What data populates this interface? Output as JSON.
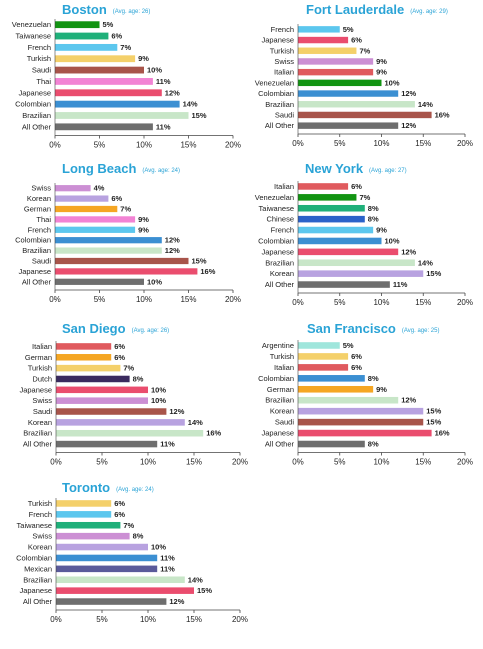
{
  "colors": {
    "title": "#2aa3d6",
    "axis": "#444444",
    "text": "#222222"
  },
  "chart_data": [
    {
      "type": "bar",
      "title": "Boston",
      "subtitle": "(Avg. age: 26)",
      "categories": [
        "Venezuelan",
        "Taiwanese",
        "French",
        "Turkish",
        "Saudi",
        "Thai",
        "Japanese",
        "Colombian",
        "Brazilian",
        "All Other"
      ],
      "values": [
        5,
        6,
        7,
        9,
        10,
        11,
        12,
        14,
        15,
        11
      ],
      "value_labels": [
        "5%",
        "6%",
        "7%",
        "9%",
        "10%",
        "11%",
        "12%",
        "14%",
        "15%",
        "11%"
      ],
      "colors": [
        "#129412",
        "#1fb07a",
        "#5cc7ee",
        "#f4d06a",
        "#a8544a",
        "#f283d4",
        "#ea4d6e",
        "#3b8fd2",
        "#c8e6c8",
        "#6e6e6e"
      ],
      "xlim": [
        0,
        20
      ],
      "xticks": [
        "0%",
        "5%",
        "10%",
        "15%",
        "20%"
      ]
    },
    {
      "type": "bar",
      "title": "Fort Lauderdale",
      "subtitle": "(Avg. age: 29)",
      "categories": [
        "French",
        "Japanese",
        "Turkish",
        "Swiss",
        "Italian",
        "Venezuelan",
        "Colombian",
        "Brazilian",
        "Saudi",
        "All Other"
      ],
      "values": [
        5,
        6,
        7,
        9,
        9,
        10,
        12,
        14,
        16,
        12
      ],
      "value_labels": [
        "5%",
        "6%",
        "7%",
        "9%",
        "9%",
        "10%",
        "12%",
        "14%",
        "16%",
        "12%"
      ],
      "colors": [
        "#5cc7ee",
        "#ea4d6e",
        "#f4d06a",
        "#cc8fd4",
        "#e05a5e",
        "#129412",
        "#3b8fd2",
        "#c8e6c8",
        "#a8544a",
        "#6e6e6e"
      ],
      "xlim": [
        0,
        20
      ],
      "xticks": [
        "0%",
        "5%",
        "10%",
        "15%",
        "20%"
      ]
    },
    {
      "type": "bar",
      "title": "Long Beach",
      "subtitle": "(Avg. age: 24)",
      "categories": [
        "Swiss",
        "Korean",
        "German",
        "Thai",
        "French",
        "Colombian",
        "Brazilian",
        "Saudi",
        "Japanese",
        "All Other"
      ],
      "values": [
        4,
        6,
        7,
        9,
        9,
        12,
        12,
        15,
        16,
        10
      ],
      "value_labels": [
        "4%",
        "6%",
        "7%",
        "9%",
        "9%",
        "12%",
        "12%",
        "15%",
        "16%",
        "10%"
      ],
      "colors": [
        "#cc8fd4",
        "#b8a2e0",
        "#f5a623",
        "#f283d4",
        "#5cc7ee",
        "#3b8fd2",
        "#c8e6c8",
        "#a8544a",
        "#ea4d6e",
        "#6e6e6e"
      ],
      "xlim": [
        0,
        20
      ],
      "xticks": [
        "0%",
        "5%",
        "10%",
        "15%",
        "20%"
      ]
    },
    {
      "type": "bar",
      "title": "New York",
      "subtitle": "(Avg. age: 27)",
      "categories": [
        "Italian",
        "Venezuelan",
        "Taiwanese",
        "Chinese",
        "French",
        "Colombian",
        "Japanese",
        "Brazilian",
        "Korean",
        "All Other"
      ],
      "values": [
        6,
        7,
        8,
        8,
        9,
        10,
        12,
        14,
        15,
        11
      ],
      "value_labels": [
        "6%",
        "7%",
        "8%",
        "8%",
        "9%",
        "10%",
        "12%",
        "14%",
        "15%",
        "11%"
      ],
      "colors": [
        "#e05a5e",
        "#129412",
        "#1fb07a",
        "#2a62c9",
        "#5cc7ee",
        "#3b8fd2",
        "#ea4d6e",
        "#c8e6c8",
        "#b8a2e0",
        "#6e6e6e"
      ],
      "xlim": [
        0,
        20
      ],
      "xticks": [
        "0%",
        "5%",
        "10%",
        "15%",
        "20%"
      ]
    },
    {
      "type": "bar",
      "title": "San Diego",
      "subtitle": "(Avg. age: 26)",
      "categories": [
        "Italian",
        "German",
        "Turkish",
        "Dutch",
        "Japanese",
        "Swiss",
        "Saudi",
        "Korean",
        "Brazilian",
        "All Other"
      ],
      "values": [
        6,
        6,
        7,
        8,
        10,
        10,
        12,
        14,
        16,
        11
      ],
      "value_labels": [
        "6%",
        "6%",
        "7%",
        "8%",
        "10%",
        "10%",
        "12%",
        "14%",
        "16%",
        "11%"
      ],
      "colors": [
        "#e05a5e",
        "#f5a623",
        "#f4d06a",
        "#3a2a5e",
        "#ea4d6e",
        "#cc8fd4",
        "#a8544a",
        "#b8a2e0",
        "#c8e6c8",
        "#6e6e6e"
      ],
      "xlim": [
        0,
        20
      ],
      "xticks": [
        "0%",
        "5%",
        "10%",
        "15%",
        "20%"
      ]
    },
    {
      "type": "bar",
      "title": "San Francisco",
      "subtitle": "(Avg. age: 25)",
      "categories": [
        "Argentine",
        "Turkish",
        "Italian",
        "Colombian",
        "German",
        "Brazilian",
        "Korean",
        "Saudi",
        "Japanese",
        "All Other"
      ],
      "values": [
        5,
        6,
        6,
        8,
        9,
        12,
        15,
        15,
        16,
        8
      ],
      "value_labels": [
        "5%",
        "6%",
        "6%",
        "8%",
        "9%",
        "12%",
        "15%",
        "15%",
        "16%",
        "8%"
      ],
      "colors": [
        "#9fe6dc",
        "#f4d06a",
        "#e05a5e",
        "#3b8fd2",
        "#f5a623",
        "#c8e6c8",
        "#b8a2e0",
        "#a8544a",
        "#ea4d6e",
        "#6e6e6e"
      ],
      "xlim": [
        0,
        20
      ],
      "xticks": [
        "0%",
        "5%",
        "10%",
        "15%",
        "20%"
      ]
    },
    {
      "type": "bar",
      "title": "Toronto",
      "subtitle": "(Avg. age: 24)",
      "categories": [
        "Turkish",
        "French",
        "Taiwanese",
        "Swiss",
        "Korean",
        "Colombian",
        "Mexican",
        "Brazilian",
        "Japanese",
        "All Other"
      ],
      "values": [
        6,
        6,
        7,
        8,
        10,
        11,
        11,
        14,
        15,
        12
      ],
      "value_labels": [
        "6%",
        "6%",
        "7%",
        "8%",
        "10%",
        "11%",
        "11%",
        "14%",
        "15%",
        "12%"
      ],
      "colors": [
        "#f4d06a",
        "#5cc7ee",
        "#1fb07a",
        "#cc8fd4",
        "#b8a2e0",
        "#3b8fd2",
        "#5a5a9a",
        "#c8e6c8",
        "#ea4d6e",
        "#6e6e6e"
      ],
      "xlim": [
        0,
        20
      ],
      "xticks": [
        "0%",
        "5%",
        "10%",
        "15%",
        "20%"
      ]
    }
  ]
}
